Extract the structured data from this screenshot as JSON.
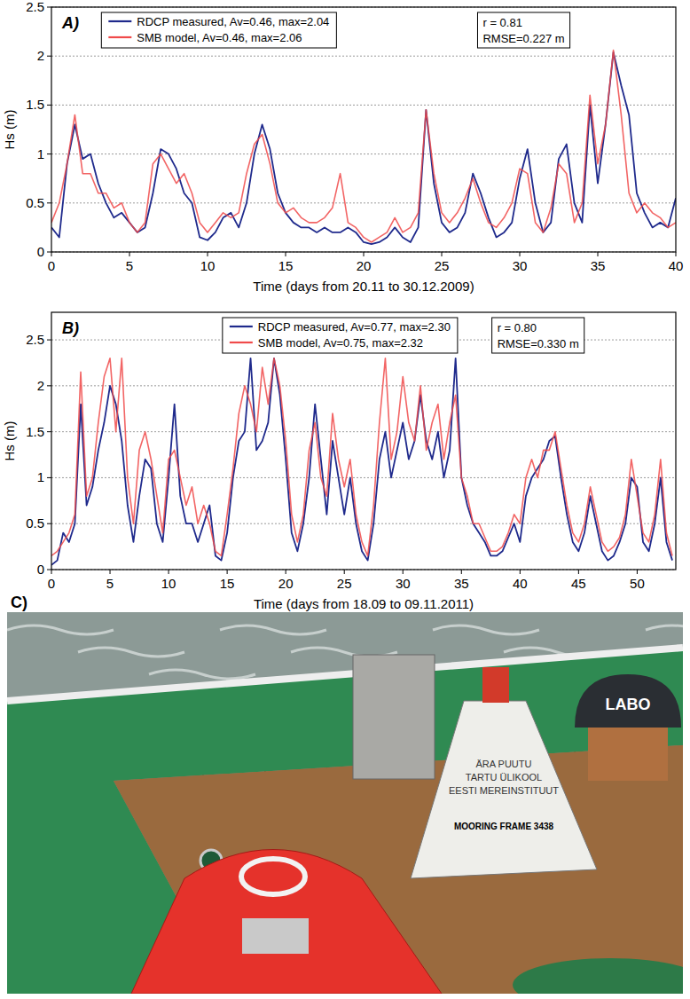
{
  "chart_data": [
    {
      "type": "line",
      "title": "A)",
      "x_label": "Time (days from 20.11 to 30.12.2009)",
      "y_label": "Hs (m)",
      "xlim": [
        0,
        40
      ],
      "xticks": [
        0,
        5,
        10,
        15,
        20,
        25,
        30,
        35,
        40
      ],
      "ylim": [
        0,
        2.5
      ],
      "yticks": [
        0,
        0.5,
        1,
        1.5,
        2,
        2.5
      ],
      "grid": true,
      "legend": "top",
      "annotations": [
        "r = 0.81",
        "RMSE=0.227 m"
      ],
      "x": [
        0,
        0.5,
        1,
        1.5,
        2,
        2.5,
        3,
        3.5,
        4,
        4.5,
        5,
        5.5,
        6,
        6.5,
        7,
        7.5,
        8,
        8.5,
        9,
        9.5,
        10,
        10.5,
        11,
        11.5,
        12,
        12.5,
        13,
        13.5,
        14,
        14.5,
        15,
        15.5,
        16,
        16.5,
        17,
        17.5,
        18,
        18.5,
        19,
        19.5,
        20,
        20.5,
        21,
        21.5,
        22,
        22.5,
        23,
        23.5,
        24,
        24.5,
        25,
        25.5,
        26,
        26.5,
        27,
        27.5,
        28,
        28.5,
        29,
        29.5,
        30,
        30.5,
        31,
        31.5,
        32,
        32.5,
        33,
        33.5,
        34,
        34.5,
        35,
        35.5,
        36,
        36.5,
        37,
        37.5,
        38,
        38.5,
        39,
        39.5,
        40
      ],
      "series": [
        {
          "name": "RDCP measured, Av=0.46, max=2.04",
          "color": "#1f2a8c",
          "values": [
            0.25,
            0.15,
            0.9,
            1.3,
            0.95,
            1.0,
            0.7,
            0.5,
            0.35,
            0.4,
            0.3,
            0.2,
            0.25,
            0.6,
            1.05,
            1.0,
            0.85,
            0.6,
            0.5,
            0.15,
            0.12,
            0.2,
            0.35,
            0.4,
            0.25,
            0.5,
            1.0,
            1.3,
            1.05,
            0.6,
            0.4,
            0.3,
            0.25,
            0.25,
            0.2,
            0.25,
            0.2,
            0.2,
            0.25,
            0.2,
            0.1,
            0.08,
            0.1,
            0.15,
            0.25,
            0.15,
            0.1,
            0.25,
            1.45,
            0.7,
            0.3,
            0.2,
            0.25,
            0.4,
            0.8,
            0.6,
            0.35,
            0.15,
            0.2,
            0.3,
            0.75,
            1.05,
            0.5,
            0.2,
            0.3,
            0.95,
            1.1,
            0.5,
            0.3,
            1.5,
            0.7,
            1.3,
            2.04,
            1.7,
            1.4,
            0.6,
            0.4,
            0.25,
            0.3,
            0.25,
            0.55
          ]
        },
        {
          "name": "SMB model, Av=0.46, max=2.06",
          "color": "#f04a4a",
          "values": [
            0.3,
            0.5,
            0.9,
            1.4,
            0.8,
            0.8,
            0.6,
            0.6,
            0.45,
            0.5,
            0.3,
            0.2,
            0.3,
            0.9,
            1.0,
            0.85,
            0.7,
            0.8,
            0.6,
            0.3,
            0.2,
            0.3,
            0.4,
            0.35,
            0.4,
            0.8,
            1.1,
            1.2,
            0.9,
            0.5,
            0.4,
            0.45,
            0.35,
            0.3,
            0.3,
            0.35,
            0.45,
            0.8,
            0.3,
            0.25,
            0.15,
            0.1,
            0.15,
            0.2,
            0.35,
            0.2,
            0.25,
            0.4,
            1.45,
            0.8,
            0.4,
            0.3,
            0.4,
            0.55,
            0.75,
            0.5,
            0.3,
            0.25,
            0.35,
            0.5,
            0.85,
            0.8,
            0.3,
            0.2,
            0.45,
            0.9,
            0.8,
            0.3,
            0.5,
            1.6,
            0.9,
            1.3,
            2.06,
            1.4,
            0.6,
            0.4,
            0.5,
            0.4,
            0.35,
            0.25,
            0.3
          ]
        }
      ]
    },
    {
      "type": "line",
      "title": "B)",
      "x_label": "Time (days from 18.09 to 09.11.2011)",
      "y_label": "Hs (m)",
      "xlim": [
        0,
        53.3
      ],
      "xticks": [
        0,
        5,
        10,
        15,
        20,
        25,
        30,
        35,
        40,
        45,
        50
      ],
      "ylim": [
        0,
        2.8
      ],
      "yticks": [
        0,
        0.5,
        1,
        1.5,
        2,
        2.5
      ],
      "grid": true,
      "legend": "top",
      "annotations": [
        "r = 0.80",
        "RMSE=0.330 m"
      ],
      "x": [
        0,
        0.5,
        1,
        1.5,
        2,
        2.5,
        3,
        3.5,
        4,
        4.5,
        5,
        5.5,
        6,
        6.5,
        7,
        7.5,
        8,
        8.5,
        9,
        9.5,
        10,
        10.5,
        11,
        11.5,
        12,
        12.5,
        13,
        13.5,
        14,
        14.5,
        15,
        15.5,
        16,
        16.5,
        17,
        17.5,
        18,
        18.5,
        19,
        19.5,
        20,
        20.5,
        21,
        21.5,
        22,
        22.5,
        23,
        23.5,
        24,
        24.5,
        25,
        25.5,
        26,
        26.5,
        27,
        27.5,
        28,
        28.5,
        29,
        29.5,
        30,
        30.5,
        31,
        31.5,
        32,
        32.5,
        33,
        33.5,
        34,
        34.5,
        35,
        35.5,
        36,
        36.5,
        37,
        37.5,
        38,
        38.5,
        39,
        39.5,
        40,
        40.5,
        41,
        41.5,
        42,
        42.5,
        43,
        43.5,
        44,
        44.5,
        45,
        45.5,
        46,
        46.5,
        47,
        47.5,
        48,
        48.5,
        49,
        49.5,
        50,
        50.5,
        51,
        51.5,
        52,
        52.5,
        53
      ],
      "series": [
        {
          "name": "RDCP measured, Av=0.77, max=2.30",
          "color": "#1f2a8c",
          "values": [
            0.05,
            0.1,
            0.4,
            0.3,
            0.5,
            1.8,
            0.7,
            0.9,
            1.3,
            1.6,
            2.0,
            1.8,
            1.4,
            0.7,
            0.3,
            0.8,
            1.2,
            1.1,
            0.5,
            0.3,
            1.0,
            1.8,
            0.8,
            0.5,
            0.5,
            0.3,
            0.5,
            0.7,
            0.15,
            0.1,
            0.4,
            1.0,
            1.4,
            1.5,
            2.3,
            1.3,
            1.4,
            1.6,
            2.3,
            1.9,
            1.2,
            0.4,
            0.2,
            0.5,
            1.0,
            1.8,
            1.2,
            0.6,
            1.4,
            1.0,
            0.6,
            1.0,
            0.5,
            0.2,
            0.1,
            0.5,
            1.2,
            1.5,
            1.0,
            1.3,
            1.6,
            1.2,
            1.4,
            1.9,
            1.4,
            1.2,
            1.5,
            1.0,
            1.3,
            2.3,
            1.0,
            0.7,
            0.5,
            0.4,
            0.3,
            0.15,
            0.15,
            0.2,
            0.35,
            0.5,
            0.3,
            0.8,
            1.0,
            1.1,
            1.2,
            1.4,
            1.45,
            1.0,
            0.6,
            0.3,
            0.2,
            0.4,
            0.8,
            0.5,
            0.2,
            0.1,
            0.15,
            0.3,
            0.5,
            1.0,
            0.9,
            0.3,
            0.2,
            0.5,
            1.0,
            0.3,
            0.1
          ]
        },
        {
          "name": "SMB model, Av=0.75, max=2.32",
          "color": "#f04a4a",
          "values": [
            0.15,
            0.2,
            0.3,
            0.4,
            0.6,
            2.15,
            0.8,
            1.0,
            1.6,
            2.1,
            2.3,
            1.5,
            2.3,
            1.0,
            0.5,
            1.3,
            1.5,
            1.2,
            0.8,
            0.4,
            1.2,
            1.3,
            1.0,
            0.7,
            0.9,
            0.5,
            0.7,
            0.5,
            0.2,
            0.15,
            0.6,
            1.1,
            1.7,
            2.0,
            1.8,
            1.5,
            2.2,
            1.8,
            2.3,
            2.0,
            1.4,
            0.6,
            0.3,
            0.6,
            1.3,
            1.6,
            1.0,
            0.8,
            1.7,
            1.2,
            0.9,
            1.2,
            0.6,
            0.3,
            0.15,
            0.7,
            1.6,
            2.3,
            1.2,
            1.5,
            2.1,
            1.6,
            1.4,
            2.0,
            1.3,
            1.6,
            1.8,
            1.2,
            1.6,
            1.9,
            1.0,
            0.8,
            0.5,
            0.5,
            0.35,
            0.2,
            0.2,
            0.25,
            0.4,
            0.6,
            0.5,
            1.0,
            1.2,
            1.0,
            1.3,
            1.3,
            1.5,
            1.1,
            0.7,
            0.4,
            0.3,
            0.5,
            0.9,
            0.6,
            0.3,
            0.2,
            0.25,
            0.35,
            0.6,
            1.2,
            0.8,
            0.4,
            0.3,
            0.6,
            1.2,
            0.4,
            0.15
          ]
        }
      ]
    }
  ],
  "photo": {
    "label": "C)",
    "texts": [
      "LABO",
      "ÄRA PUUTU",
      "TARTU ÜLIKOOL",
      "EESTI MEREINSTITUUT",
      "MOORING FRAME 3438"
    ]
  }
}
